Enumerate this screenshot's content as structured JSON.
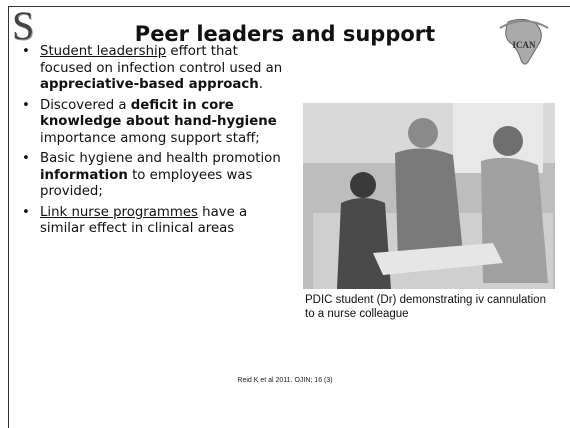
{
  "header": {
    "logo_left": "S",
    "title": "Peer leaders and support",
    "logo_right": "ICAN"
  },
  "bullets": [
    {
      "segments": [
        {
          "text": "Student leadership",
          "style": "underline"
        },
        {
          "text": " effort that focused on infection control used an "
        },
        {
          "text": "appreciative-based approach",
          "style": "bold"
        },
        {
          "text": "."
        }
      ]
    },
    {
      "segments": [
        {
          "text": "Discovered a "
        },
        {
          "text": "deficit in core knowledge about hand-hygiene",
          "style": "bold"
        },
        {
          "text": " importance among support staff;"
        }
      ]
    },
    {
      "segments": [
        {
          "text": "Basic hygiene and health promotion "
        },
        {
          "text": "information",
          "style": "bold"
        },
        {
          "text": " to employees was provided;"
        }
      ]
    },
    {
      "segments": [
        {
          "text": "Link nurse programmes",
          "style": "underline"
        },
        {
          "text": " have a similar effect in clinical areas"
        }
      ]
    }
  ],
  "figure": {
    "caption": "PDIC student (Dr) demonstrating iv cannulation to a nurse colleague"
  },
  "footer": {
    "citation": "Reid K et al 2011. OJIN; 16 (3)"
  }
}
